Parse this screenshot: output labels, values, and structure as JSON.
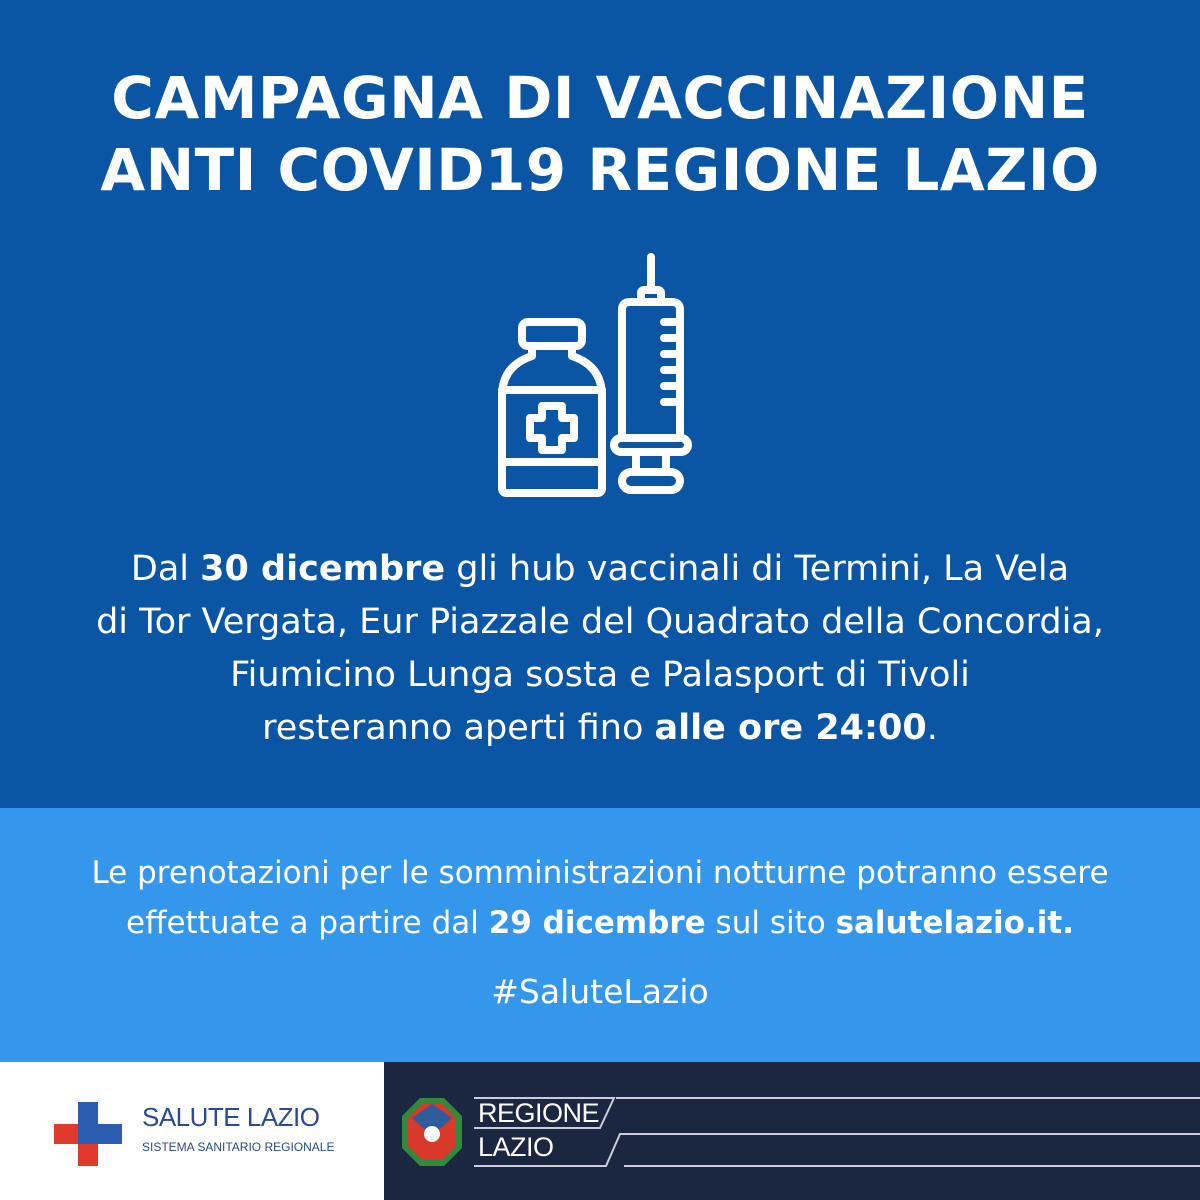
{
  "title": {
    "line1": "CAMPAGNA DI VACCINAZIONE",
    "line2": "ANTI COVID19 REGIONE LAZIO"
  },
  "icon": "vaccine-vial-and-syringe-icon",
  "body": {
    "l1a": "Dal ",
    "l1b": "30 dicembre",
    "l1c": " gli hub vaccinali di Termini, La Vela",
    "l2": "di Tor Vergata, Eur Piazzale del Quadrato della Concordia,",
    "l3": "Fiumicino Lunga sosta e Palasport di Tivoli",
    "l4a": "resteranno aperti fino ",
    "l4b": "alle ore 24:00",
    "l4c": "."
  },
  "info": {
    "l1": "Le prenotazioni per le somministrazioni notturne potranno essere",
    "l2a": "effettuate a partire dal ",
    "l2b": "29 dicembre",
    "l2c": " sul sito ",
    "l2d": "salutelazio.it."
  },
  "hashtag": "#SaluteLazio",
  "footer": {
    "salute_name": "SALUTE LAZIO",
    "salute_sub": "SISTEMA SANITARIO REGIONALE",
    "regione_l1": "REGIONE",
    "regione_l2": "LAZIO"
  },
  "colors": {
    "main": "#0b56a4",
    "band": "#3597ec",
    "footer": "#1b2740",
    "cross_blue": "#2a5cb0",
    "cross_red": "#e03a2c"
  }
}
